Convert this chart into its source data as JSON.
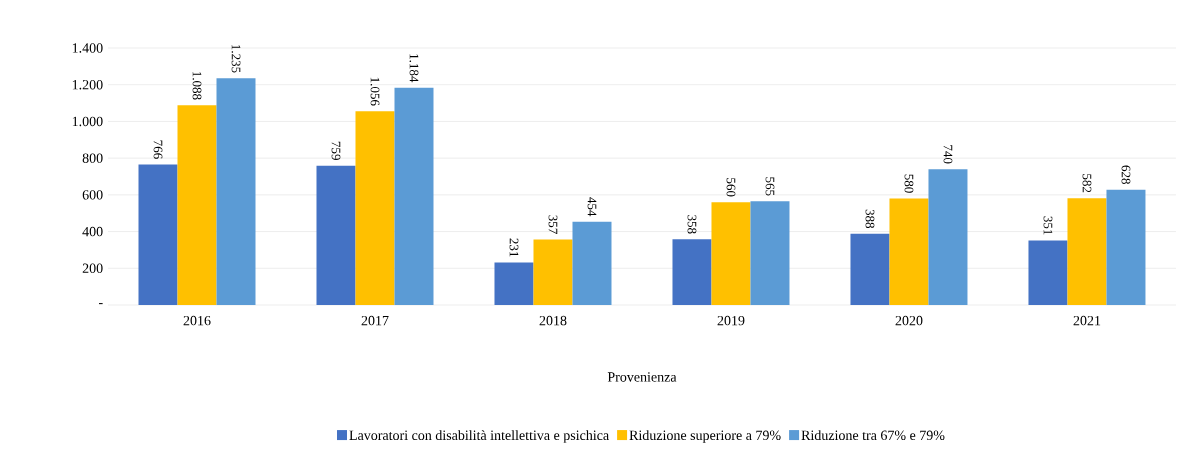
{
  "chart_data": {
    "type": "bar",
    "xlabel": "Provenienza",
    "categories": [
      "2016",
      "2017",
      "2018",
      "2019",
      "2020",
      "2021"
    ],
    "series": [
      {
        "name": "Lavoratori con disabilità intellettiva e psichica",
        "color": "#4472c4",
        "values": [
          766,
          759,
          231,
          358,
          388,
          351
        ],
        "value_labels": [
          "766",
          "759",
          "231",
          "358",
          "388",
          "351"
        ]
      },
      {
        "name": "Riduzione superiore a 79%",
        "color": "#ffc000",
        "values": [
          1088,
          1056,
          357,
          560,
          580,
          582
        ],
        "value_labels": [
          "1.088",
          "1.056",
          "357",
          "560",
          "580",
          "582"
        ]
      },
      {
        "name": "Riduzione tra 67% e 79%",
        "color": "#5b9bd5",
        "values": [
          1235,
          1184,
          454,
          565,
          740,
          628
        ],
        "value_labels": [
          "1.235",
          "1.184",
          "454",
          "565",
          "740",
          "628"
        ]
      }
    ],
    "ylim": [
      0,
      1400
    ],
    "yticks": [
      {
        "value": 0,
        "label": "-"
      },
      {
        "value": 200,
        "label": "200"
      },
      {
        "value": 400,
        "label": "400"
      },
      {
        "value": 600,
        "label": "600"
      },
      {
        "value": 800,
        "label": "800"
      },
      {
        "value": 1000,
        "label": "1.000"
      },
      {
        "value": 1200,
        "label": "1.200"
      },
      {
        "value": 1400,
        "label": "1.400"
      }
    ],
    "grid": "y",
    "legend": "bottom"
  }
}
